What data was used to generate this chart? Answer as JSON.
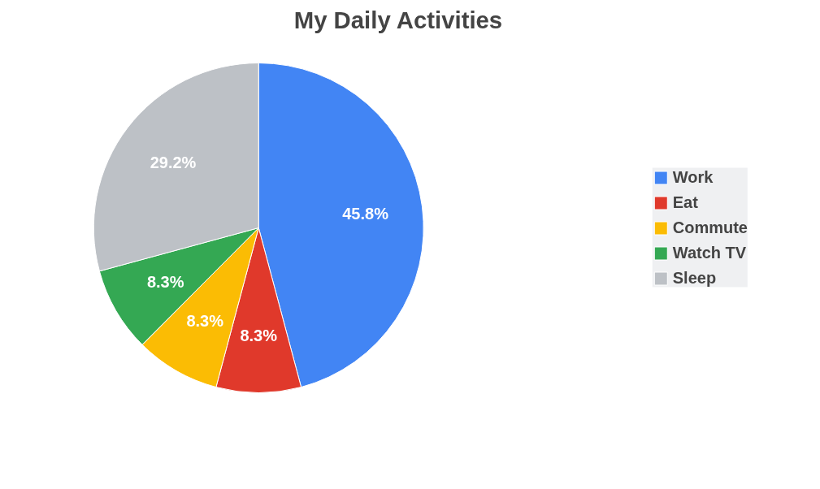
{
  "chart_data": {
    "type": "pie",
    "title": "My Daily Activities",
    "categories": [
      "Work",
      "Eat",
      "Commute",
      "Watch TV",
      "Sleep"
    ],
    "values": [
      45.8,
      8.3,
      8.3,
      8.3,
      29.2
    ],
    "colors": [
      "#4285f4",
      "#e0392b",
      "#fbbc04",
      "#34a853",
      "#bdc1c6"
    ],
    "value_labels": [
      "45.8%",
      "8.3%",
      "8.3%",
      "8.3%",
      "29.2%"
    ],
    "legend": "right"
  }
}
